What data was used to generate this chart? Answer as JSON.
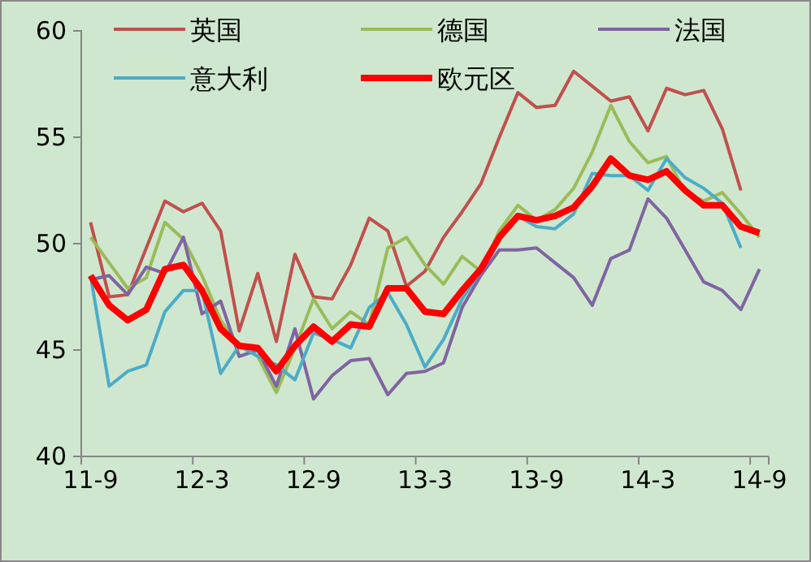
{
  "chart_data": {
    "type": "line",
    "categories": [
      "11-9",
      null,
      null,
      null,
      null,
      null,
      "12-3",
      null,
      null,
      null,
      null,
      null,
      "12-9",
      null,
      null,
      null,
      null,
      null,
      "13-3",
      null,
      null,
      null,
      null,
      null,
      "13-9",
      null,
      null,
      null,
      null,
      null,
      "14-3",
      null,
      null,
      null,
      null,
      null,
      "14-9"
    ],
    "series": [
      {
        "name": "英国",
        "color": "#c0504d",
        "values": [
          51.0,
          47.5,
          47.6,
          49.8,
          52.0,
          51.5,
          51.9,
          50.6,
          45.9,
          48.6,
          45.4,
          49.5,
          47.5,
          47.4,
          49.0,
          51.2,
          50.6,
          48.0,
          48.7,
          50.3,
          51.5,
          52.8,
          55.0,
          57.1,
          56.4,
          56.5,
          58.1,
          57.4,
          56.7,
          56.9,
          55.3,
          57.3,
          57.0,
          57.2,
          55.4,
          52.5,
          null
        ]
      },
      {
        "name": "德国",
        "color": "#9bbb59",
        "values": [
          50.3,
          49.1,
          47.9,
          48.4,
          51.0,
          50.2,
          48.5,
          46.4,
          45.2,
          44.7,
          43.0,
          45.1,
          47.4,
          46.0,
          46.8,
          46.2,
          49.8,
          50.3,
          49.0,
          48.1,
          49.4,
          48.7,
          50.6,
          51.8,
          51.1,
          51.6,
          52.6,
          54.3,
          56.5,
          54.8,
          53.8,
          54.1,
          52.4,
          52.0,
          52.4,
          51.4,
          50.3
        ]
      },
      {
        "name": "法国",
        "color": "#8064a2",
        "values": [
          48.3,
          48.5,
          47.6,
          48.9,
          48.6,
          50.3,
          46.7,
          47.3,
          44.7,
          45.0,
          43.3,
          46.0,
          42.7,
          43.8,
          44.5,
          44.6,
          42.9,
          43.9,
          44.0,
          44.4,
          47.0,
          48.5,
          49.7,
          49.7,
          49.8,
          49.1,
          48.4,
          47.1,
          49.3,
          49.7,
          52.1,
          51.2,
          49.7,
          48.2,
          47.8,
          46.9,
          48.8
        ]
      },
      {
        "name": "意大利",
        "color": "#4bacc6",
        "values": [
          48.5,
          43.3,
          44.0,
          44.3,
          46.8,
          47.8,
          47.8,
          43.9,
          45.2,
          44.7,
          44.3,
          43.6,
          45.8,
          45.5,
          45.1,
          47.0,
          47.7,
          46.2,
          44.2,
          45.5,
          47.4,
          48.7,
          50.3,
          51.3,
          50.8,
          50.7,
          51.4,
          53.3,
          53.2,
          53.2,
          52.5,
          54.0,
          53.1,
          52.6,
          51.9,
          49.8,
          null
        ]
      },
      {
        "name": "欧元区",
        "color": "#ff0000",
        "values": [
          48.5,
          47.1,
          46.4,
          46.9,
          48.8,
          49.0,
          47.8,
          46.0,
          45.2,
          45.1,
          44.0,
          45.2,
          46.1,
          45.4,
          46.2,
          46.1,
          47.9,
          47.9,
          46.8,
          46.7,
          47.8,
          48.8,
          50.3,
          51.3,
          51.1,
          51.3,
          51.7,
          52.7,
          54.0,
          53.2,
          53.0,
          53.4,
          52.5,
          51.8,
          51.8,
          50.8,
          50.5
        ]
      }
    ],
    "ylim": [
      40,
      60
    ],
    "yticks": [
      40,
      45,
      50,
      55,
      60
    ],
    "legend": "top",
    "grid": false
  }
}
